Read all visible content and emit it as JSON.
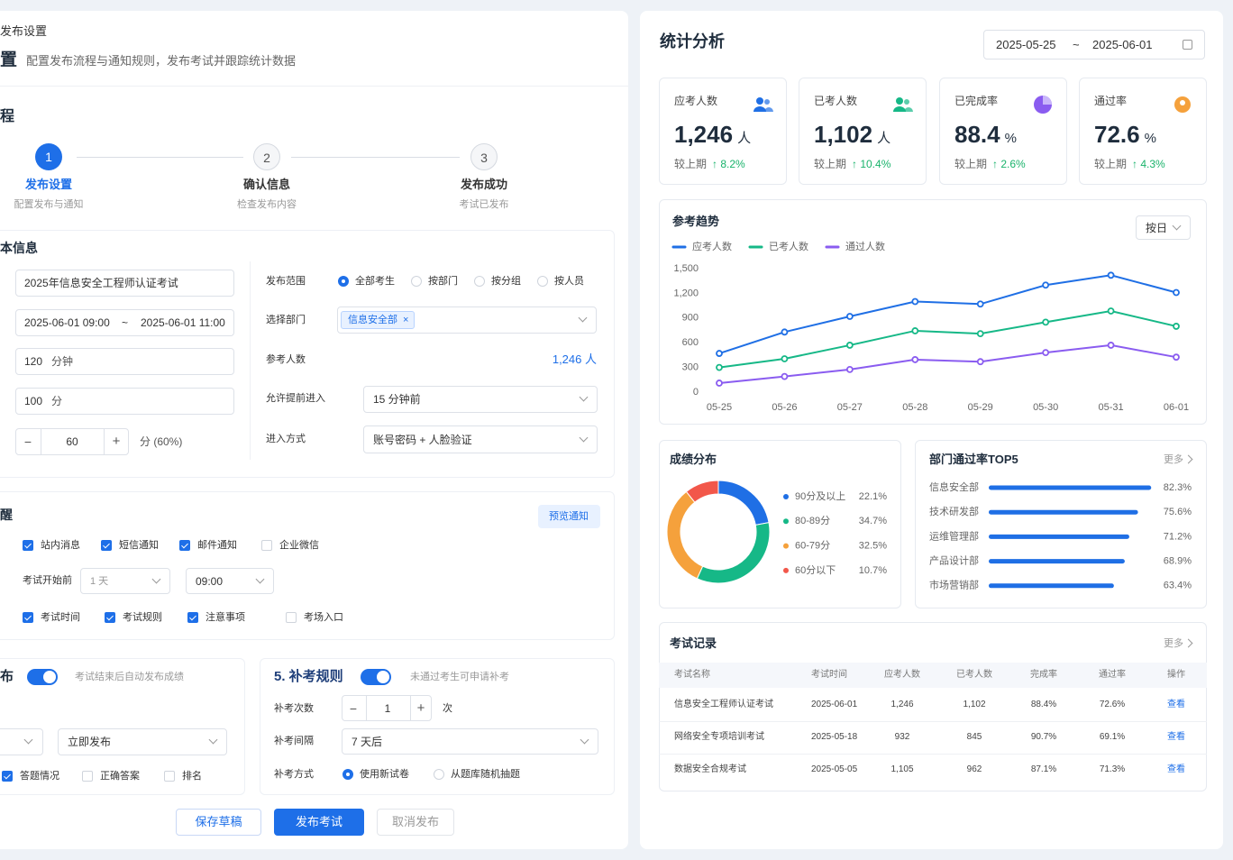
{
  "left": {
    "breadcrumb": "发布设置",
    "title": "置",
    "subtitle": "配置发布流程与通知规则，发布考试并跟踪统计数据",
    "flow_title": "程",
    "steps": [
      {
        "num": "1",
        "label": "发布设置",
        "desc": "配置发布与通知"
      },
      {
        "num": "2",
        "label": "确认信息",
        "desc": "检查发布内容"
      },
      {
        "num": "3",
        "label": "发布成功",
        "desc": "考试已发布"
      }
    ],
    "basic": {
      "title": "本信息",
      "name": "2025年信息安全工程师认证考试",
      "start": "2025-06-01 09:00",
      "sep": "~",
      "end": "2025-06-01 11:00",
      "duration": "120",
      "duration_unit": "分钟",
      "score": "100",
      "score_unit": "分",
      "minus": "−",
      "pass": "60",
      "plus": "+",
      "pass_unit": "分 (60%)",
      "scope_label": "发布范围",
      "scope_options": [
        "全部考生",
        "按部门",
        "按分组",
        "按人员"
      ],
      "dept_label": "选择部门",
      "dept_tag": "信息安全部",
      "tag_close": "×",
      "count_label": "参考人数",
      "count": "1,246 人",
      "early_label": "允许提前进入",
      "early": "15 分钟前",
      "entry_label": "进入方式",
      "entry": "账号密码 + 人脸验证"
    },
    "notify": {
      "title": "醒",
      "preview": "预览通知",
      "channels": [
        "站内消息",
        "短信通知",
        "邮件通知",
        "企业微信"
      ],
      "before_label": "考试开始前",
      "before": "1 天",
      "time": "09:00",
      "contents": [
        "考试时间",
        "考试规则",
        "注意事项",
        "考场入口"
      ]
    },
    "publish": {
      "title": "布",
      "hint": "考试结束后自动发布成绩",
      "mode": "立即发布",
      "show": [
        "答题情况",
        "正确答案",
        "排名"
      ]
    },
    "retake": {
      "title": "5. 补考规则",
      "hint": "未通过考生可申请补考",
      "times_label": "补考次数",
      "minus": "−",
      "times": "1",
      "plus": "+",
      "times_unit": "次",
      "interval_label": "补考间隔",
      "interval": "7 天后",
      "mode_label": "补考方式",
      "modes": [
        "使用新试卷",
        "从题库随机抽题"
      ]
    },
    "buttons": [
      "保存草稿",
      "发布考试",
      "取消发布"
    ]
  },
  "right": {
    "title": "统计分析",
    "date_start": "2025-05-25",
    "date_sep": "~",
    "date_end": "2025-06-01",
    "kpis": [
      {
        "label": "应考人数",
        "value": "1,246",
        "unit": "人",
        "compare": "较上期",
        "delta": "↑ 8.2%"
      },
      {
        "label": "已考人数",
        "value": "1,102",
        "unit": "人",
        "compare": "较上期",
        "delta": "↑ 10.4%"
      },
      {
        "label": "已完成率",
        "value": "88.4",
        "unit": "%",
        "compare": "较上期",
        "delta": "↑ 2.6%"
      },
      {
        "label": "通过率",
        "value": "72.6",
        "unit": "%",
        "compare": "较上期",
        "delta": "↑ 4.3%"
      }
    ],
    "period": "按日",
    "table": {
      "title": "考试记录",
      "more": "更多",
      "header": [
        "考试名称",
        "考试时间",
        "应考人数",
        "已考人数",
        "完成率",
        "通过率",
        "操作"
      ],
      "rows": [
        [
          "信息安全工程师认证考试",
          "2025-06-01",
          "1,246",
          "1,102",
          "88.4%",
          "72.6%",
          "查看"
        ],
        [
          "网络安全专项培训考试",
          "2025-05-18",
          "932",
          "845",
          "90.7%",
          "69.1%",
          "查看"
        ],
        [
          "数据安全合规考试",
          "2025-05-05",
          "1,105",
          "962",
          "87.1%",
          "71.3%",
          "查看"
        ]
      ]
    }
  },
  "chart_data": [
    {
      "type": "line",
      "title": "参考趋势",
      "categories": [
        "05-25",
        "05-26",
        "05-27",
        "05-28",
        "05-29",
        "05-30",
        "05-31",
        "06-01"
      ],
      "series": [
        {
          "name": "应考人数",
          "color": "#1f6fe5",
          "values": [
            470,
            730,
            920,
            1100,
            1070,
            1300,
            1420,
            1210
          ]
        },
        {
          "name": "已考人数",
          "color": "#16b887",
          "values": [
            300,
            405,
            570,
            745,
            710,
            850,
            985,
            800
          ]
        },
        {
          "name": "通过人数",
          "color": "#8a5cf0",
          "values": [
            110,
            190,
            275,
            395,
            370,
            480,
            570,
            425
          ]
        }
      ],
      "ylim": [
        0,
        1500
      ],
      "yticks": [
        0,
        300,
        600,
        900,
        {
          "value": 1200,
          "label": "1,200"
        },
        {
          "value": 1500,
          "label": "1,500"
        }
      ],
      "grid": false
    },
    {
      "type": "pie",
      "donut": true,
      "title": "成绩分布",
      "categories": [
        "90分及以上",
        "80-89分",
        "60-79分",
        "60分以下"
      ],
      "values": [
        22.1,
        34.7,
        32.5,
        10.7
      ],
      "value_labels": [
        "22.1%",
        "34.7%",
        "32.5%",
        "10.7%"
      ],
      "colors": [
        "#1f6fe5",
        "#16b887",
        "#f5a13c",
        "#f2574a"
      ]
    },
    {
      "type": "bar",
      "orientation": "horizontal",
      "title": "部门通过率TOP5",
      "more": "更多",
      "categories": [
        "信息安全部",
        "技术研发部",
        "运维管理部",
        "产品设计部",
        "市场营销部"
      ],
      "values": [
        82.3,
        75.6,
        71.2,
        68.9,
        63.4
      ],
      "value_labels": [
        "82.3%",
        "75.6%",
        "71.2%",
        "68.9%",
        "63.4%"
      ],
      "color": "#1f6fe5",
      "xlim": [
        0,
        100
      ]
    }
  ]
}
